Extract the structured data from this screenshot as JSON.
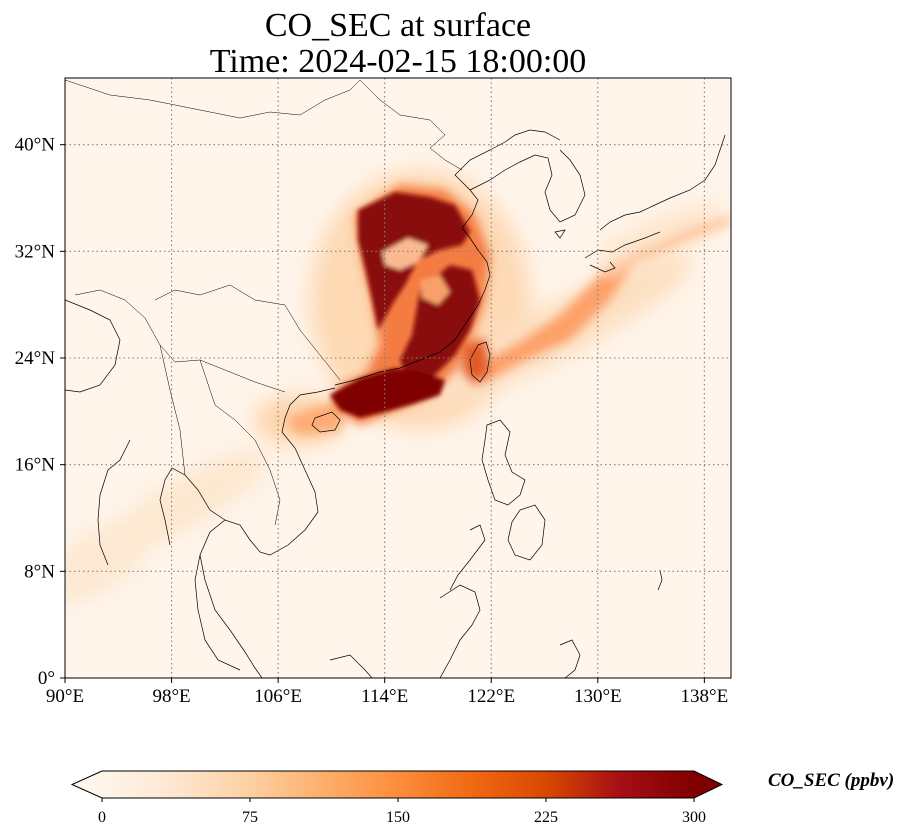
{
  "title": {
    "line1": "CO_SEC at surface",
    "line2": "Time: 2024-02-15 18:00:00"
  },
  "map": {
    "extent": {
      "lon": [
        90,
        140
      ],
      "lat": [
        0,
        45
      ]
    },
    "lon_ticks": [
      90,
      98,
      106,
      114,
      122,
      130,
      138
    ],
    "lat_ticks": [
      0,
      8,
      16,
      24,
      32,
      40
    ],
    "lon_tick_labels": [
      "90°E",
      "98°E",
      "106°E",
      "114°E",
      "122°E",
      "130°E",
      "138°E"
    ],
    "lat_tick_labels": [
      "0°",
      "8°N",
      "16°N",
      "24°N",
      "32°N",
      "40°N"
    ],
    "gridlines": true,
    "coastlines": true,
    "background_color": "#fff5eb"
  },
  "colorbar": {
    "label": "CO_SEC (ppbv)",
    "ticks": [
      0,
      75,
      150,
      225,
      300
    ],
    "tick_labels": [
      "0",
      "75",
      "150",
      "225",
      "300"
    ],
    "range": [
      0,
      300
    ],
    "extend": "both",
    "colormap": "OrRd",
    "colors": [
      "#fff5eb",
      "#fee6ce",
      "#fdd0a2",
      "#fdae6b",
      "#fd8d3c",
      "#f16913",
      "#d94801",
      "#a50f15",
      "#7f0000"
    ]
  },
  "plumes": [
    {
      "name": "north-china-core",
      "lon": 115.5,
      "lat": 32.5,
      "value": 310
    },
    {
      "name": "south-china-core",
      "lon": 116.0,
      "lat": 23.5,
      "value": 300
    },
    {
      "name": "hainan-gulf",
      "lon": 110.5,
      "lat": 20.5,
      "value": 230
    },
    {
      "name": "taiwan",
      "lon": 121.0,
      "lat": 23.5,
      "value": 200
    },
    {
      "name": "pacific-tail",
      "lon": 127.0,
      "lat": 26.5,
      "value": 130
    },
    {
      "name": "japan-tail",
      "lon": 133.0,
      "lat": 32.0,
      "value": 80
    },
    {
      "name": "indochina-haze",
      "lon": 99.0,
      "lat": 12.0,
      "value": 35
    }
  ]
}
